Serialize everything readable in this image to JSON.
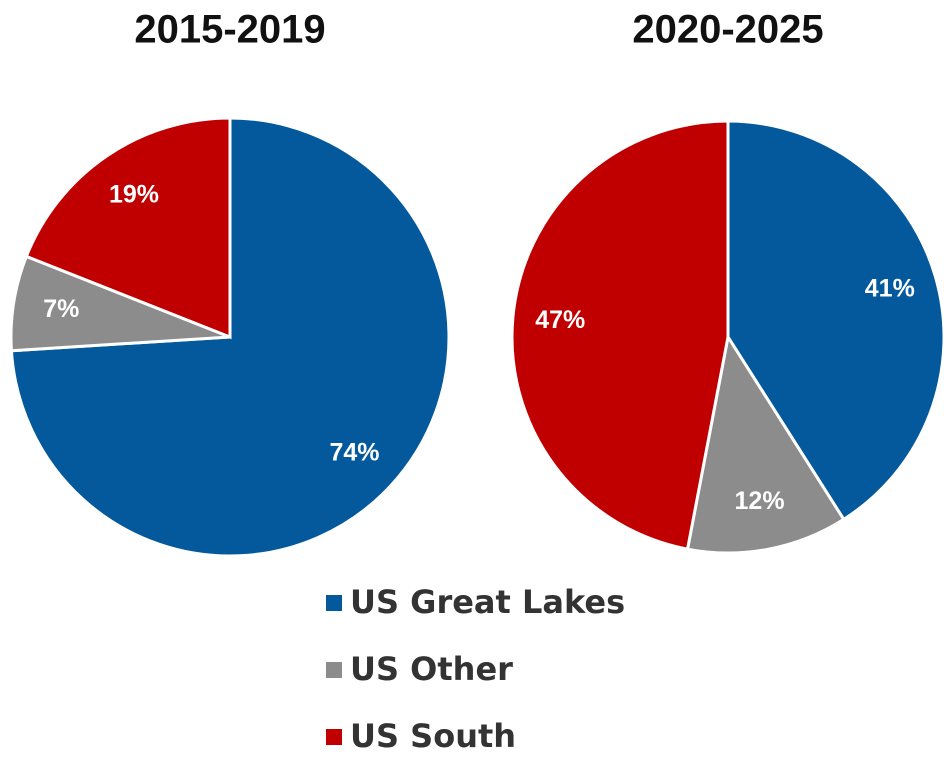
{
  "chart_data": [
    {
      "type": "pie",
      "title": "2015-2019",
      "categories": [
        "US Great Lakes",
        "US Other",
        "US South"
      ],
      "values": [
        74,
        7,
        19
      ],
      "value_labels": [
        "74%",
        "7%",
        "19%"
      ],
      "colors": [
        "#04599c",
        "#8c8c8c",
        "#c00000"
      ]
    },
    {
      "type": "pie",
      "title": "2020-2025",
      "categories": [
        "US Great Lakes",
        "US Other",
        "US South"
      ],
      "values": [
        41,
        12,
        47
      ],
      "value_labels": [
        "41%",
        "12%",
        "47%"
      ],
      "colors": [
        "#04599c",
        "#8c8c8c",
        "#c00000"
      ]
    }
  ]
}
